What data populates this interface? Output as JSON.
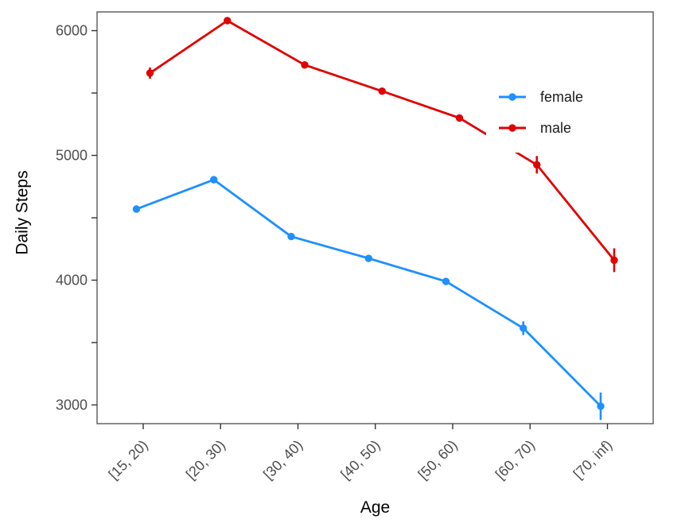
{
  "chart_data": {
    "type": "line",
    "title": "",
    "xlabel": "Age",
    "ylabel": "Daily Steps",
    "categories": [
      "[15, 20)",
      "[20, 30)",
      "[30, 40)",
      "[40, 50)",
      "[50, 60)",
      "[60, 70)",
      "[70, inf)"
    ],
    "series": [
      {
        "name": "female",
        "color": "#1E90FF",
        "values": [
          4570,
          4805,
          4350,
          4175,
          3990,
          3615,
          2990
        ],
        "errors": [
          25,
          25,
          25,
          25,
          25,
          55,
          110
        ]
      },
      {
        "name": "male",
        "color": "#E00000",
        "values": [
          5660,
          6080,
          5725,
          5515,
          5300,
          4925,
          4160
        ],
        "errors": [
          45,
          25,
          25,
          25,
          25,
          70,
          95
        ]
      }
    ],
    "ylim": [
      2850,
      6150
    ],
    "y_major_ticks": [
      3000,
      4000,
      5000,
      6000
    ],
    "y_minor_ticks": [
      3500,
      4500,
      5500
    ],
    "grid": "off",
    "legend_position": "inside-top-right",
    "position": "dodge",
    "marker": "circle",
    "error_bar_caps": false
  },
  "style_colors": {
    "panel_border": "#595959",
    "tick_mark": "#333333",
    "tick_label": "#4d4d4d",
    "axis_title": "#000000",
    "legend_text": "#1a1a1a",
    "background": "#ffffff"
  }
}
